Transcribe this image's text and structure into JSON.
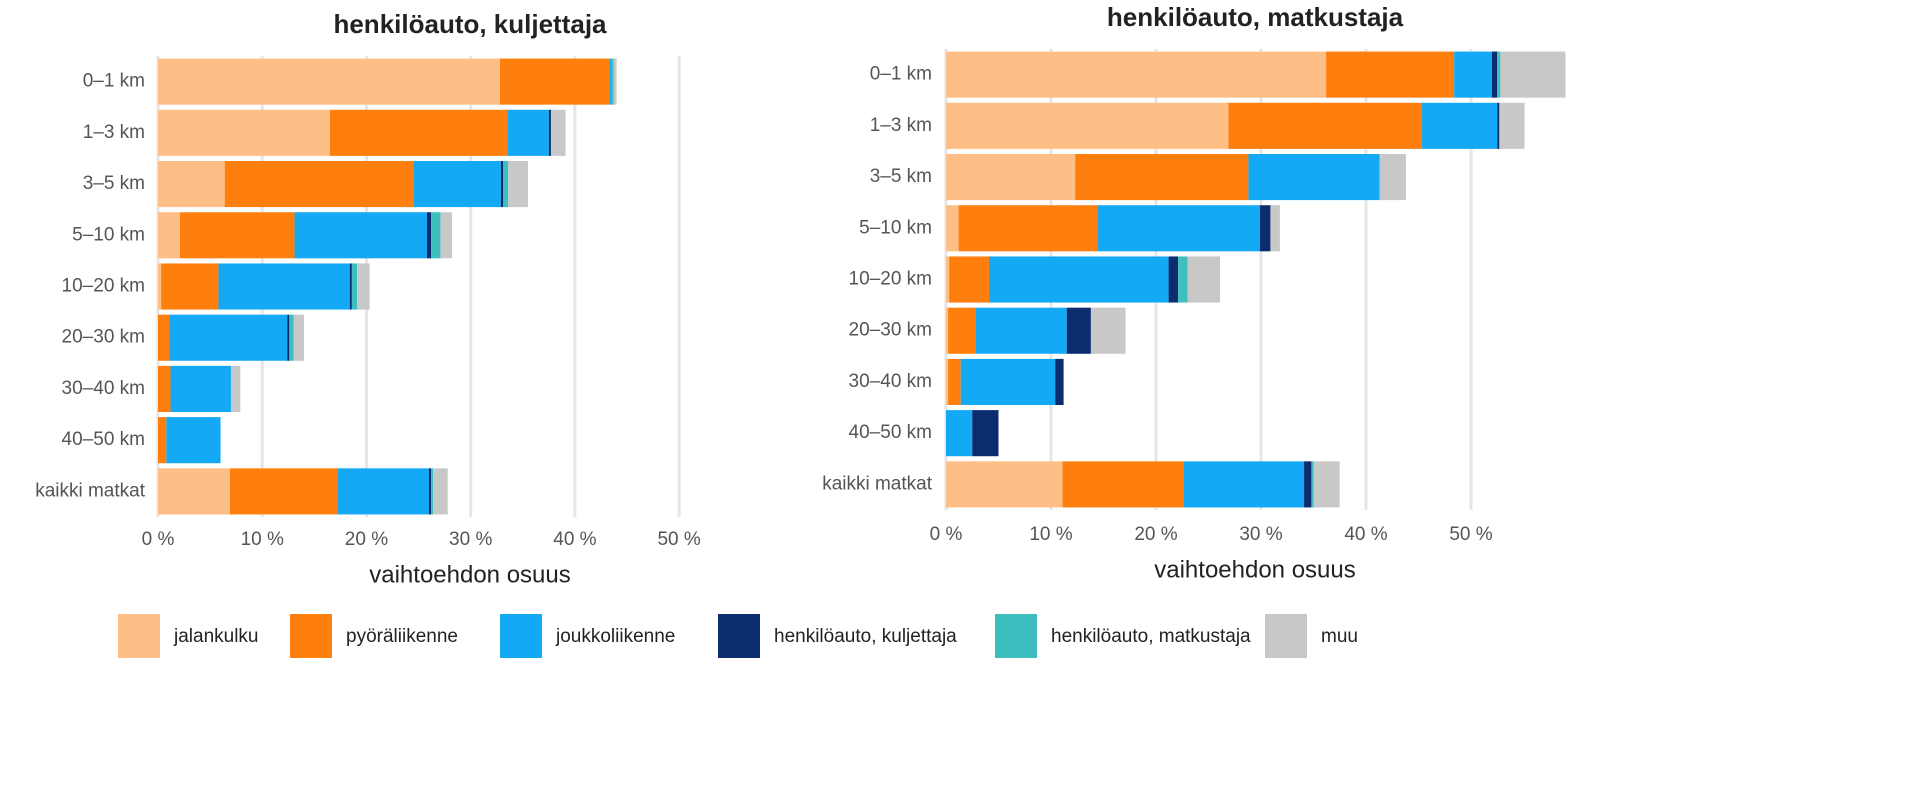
{
  "chart_data": [
    {
      "type": "bar",
      "orientation": "horizontal",
      "stacked": true,
      "title": "henkilöauto, kuljettaja",
      "xlabel": "vaihtoehdon osuus",
      "categories": [
        "0–1 km",
        "1–3 km",
        "3–5 km",
        "5–10 km",
        "10–20 km",
        "20–30 km",
        "30–40 km",
        "40–50 km",
        "kaikki matkat"
      ],
      "series": [
        {
          "name": "jalankulku",
          "color": "#fdbf85",
          "values": [
            32.8,
            16.5,
            6.4,
            2.1,
            0.3,
            0,
            0,
            0,
            6.9
          ]
        },
        {
          "name": "pyöräliikenne",
          "color": "#ff7f0e",
          "values": [
            10.5,
            17.0,
            18.1,
            11.0,
            5.5,
            1.1,
            1.2,
            0.8,
            10.3
          ]
        },
        {
          "name": "joukkoliikenne",
          "color": "#14a9f5",
          "values": [
            0.2,
            4.0,
            8.4,
            12.7,
            12.6,
            11.3,
            5.8,
            5.2,
            8.8
          ]
        },
        {
          "name": "henkilöauto, kuljettaja",
          "color": "#0b2d6f",
          "values": [
            0,
            0.2,
            0.2,
            0.4,
            0.2,
            0.2,
            0,
            0,
            0.2
          ]
        },
        {
          "name": "henkilöauto, matkustaja",
          "color": "#3dbfbf",
          "values": [
            0.2,
            0,
            0.5,
            0.9,
            0.5,
            0.4,
            0,
            0,
            0.2
          ]
        },
        {
          "name": "muu",
          "color": "#c8c8c8",
          "values": [
            0.3,
            1.4,
            1.9,
            1.1,
            1.2,
            1.0,
            0.9,
            0,
            1.4
          ]
        }
      ],
      "xlim": [
        0,
        52
      ],
      "xticks": [
        {
          "value": 0,
          "label": "0 %"
        },
        {
          "value": 10,
          "label": "10 %"
        },
        {
          "value": 20,
          "label": "20 %"
        },
        {
          "value": 30,
          "label": "30 %"
        },
        {
          "value": 40,
          "label": "40 %"
        },
        {
          "value": 50,
          "label": "50 %"
        }
      ],
      "grid": true,
      "legend": "bottom"
    },
    {
      "type": "bar",
      "orientation": "horizontal",
      "stacked": true,
      "title": "henkilöauto, matkustaja",
      "xlabel": "vaihtoehdon osuus",
      "categories": [
        "0–1 km",
        "1–3 km",
        "3–5 km",
        "5–10 km",
        "10–20 km",
        "20–30 km",
        "30–40 km",
        "40–50 km",
        "kaikki matkat"
      ],
      "series": [
        {
          "name": "jalankulku",
          "color": "#fdbf85",
          "values": [
            36.2,
            26.9,
            12.3,
            1.2,
            0.3,
            0.2,
            0.2,
            0,
            11.1
          ]
        },
        {
          "name": "pyöräliikenne",
          "color": "#ff7f0e",
          "values": [
            12.2,
            18.4,
            16.5,
            13.2,
            3.8,
            2.6,
            1.2,
            0,
            11.5
          ]
        },
        {
          "name": "joukkoliikenne",
          "color": "#14a9f5",
          "values": [
            3.6,
            7.2,
            12.5,
            15.5,
            17.1,
            8.7,
            9.0,
            2.5,
            11.5
          ]
        },
        {
          "name": "henkilöauto, kuljettaja",
          "color": "#0b2d6f",
          "values": [
            0.5,
            0.2,
            0,
            1.0,
            0.9,
            2.3,
            0.8,
            2.5,
            0.7
          ]
        },
        {
          "name": "henkilöauto, matkustaja",
          "color": "#3dbfbf",
          "values": [
            0.3,
            0,
            0,
            0,
            0.9,
            0,
            0,
            0,
            0.2
          ]
        },
        {
          "name": "muu",
          "color": "#c8c8c8",
          "values": [
            6.2,
            2.4,
            2.5,
            0.9,
            3.1,
            3.3,
            0,
            0,
            2.5
          ]
        }
      ],
      "xlim": [
        0,
        59
      ],
      "xticks": [
        {
          "value": 0,
          "label": "0 %"
        },
        {
          "value": 10,
          "label": "10 %"
        },
        {
          "value": 20,
          "label": "20 %"
        },
        {
          "value": 30,
          "label": "30 %"
        },
        {
          "value": 40,
          "label": "40 %"
        },
        {
          "value": 50,
          "label": "50 %"
        }
      ],
      "grid": true
    }
  ]
}
